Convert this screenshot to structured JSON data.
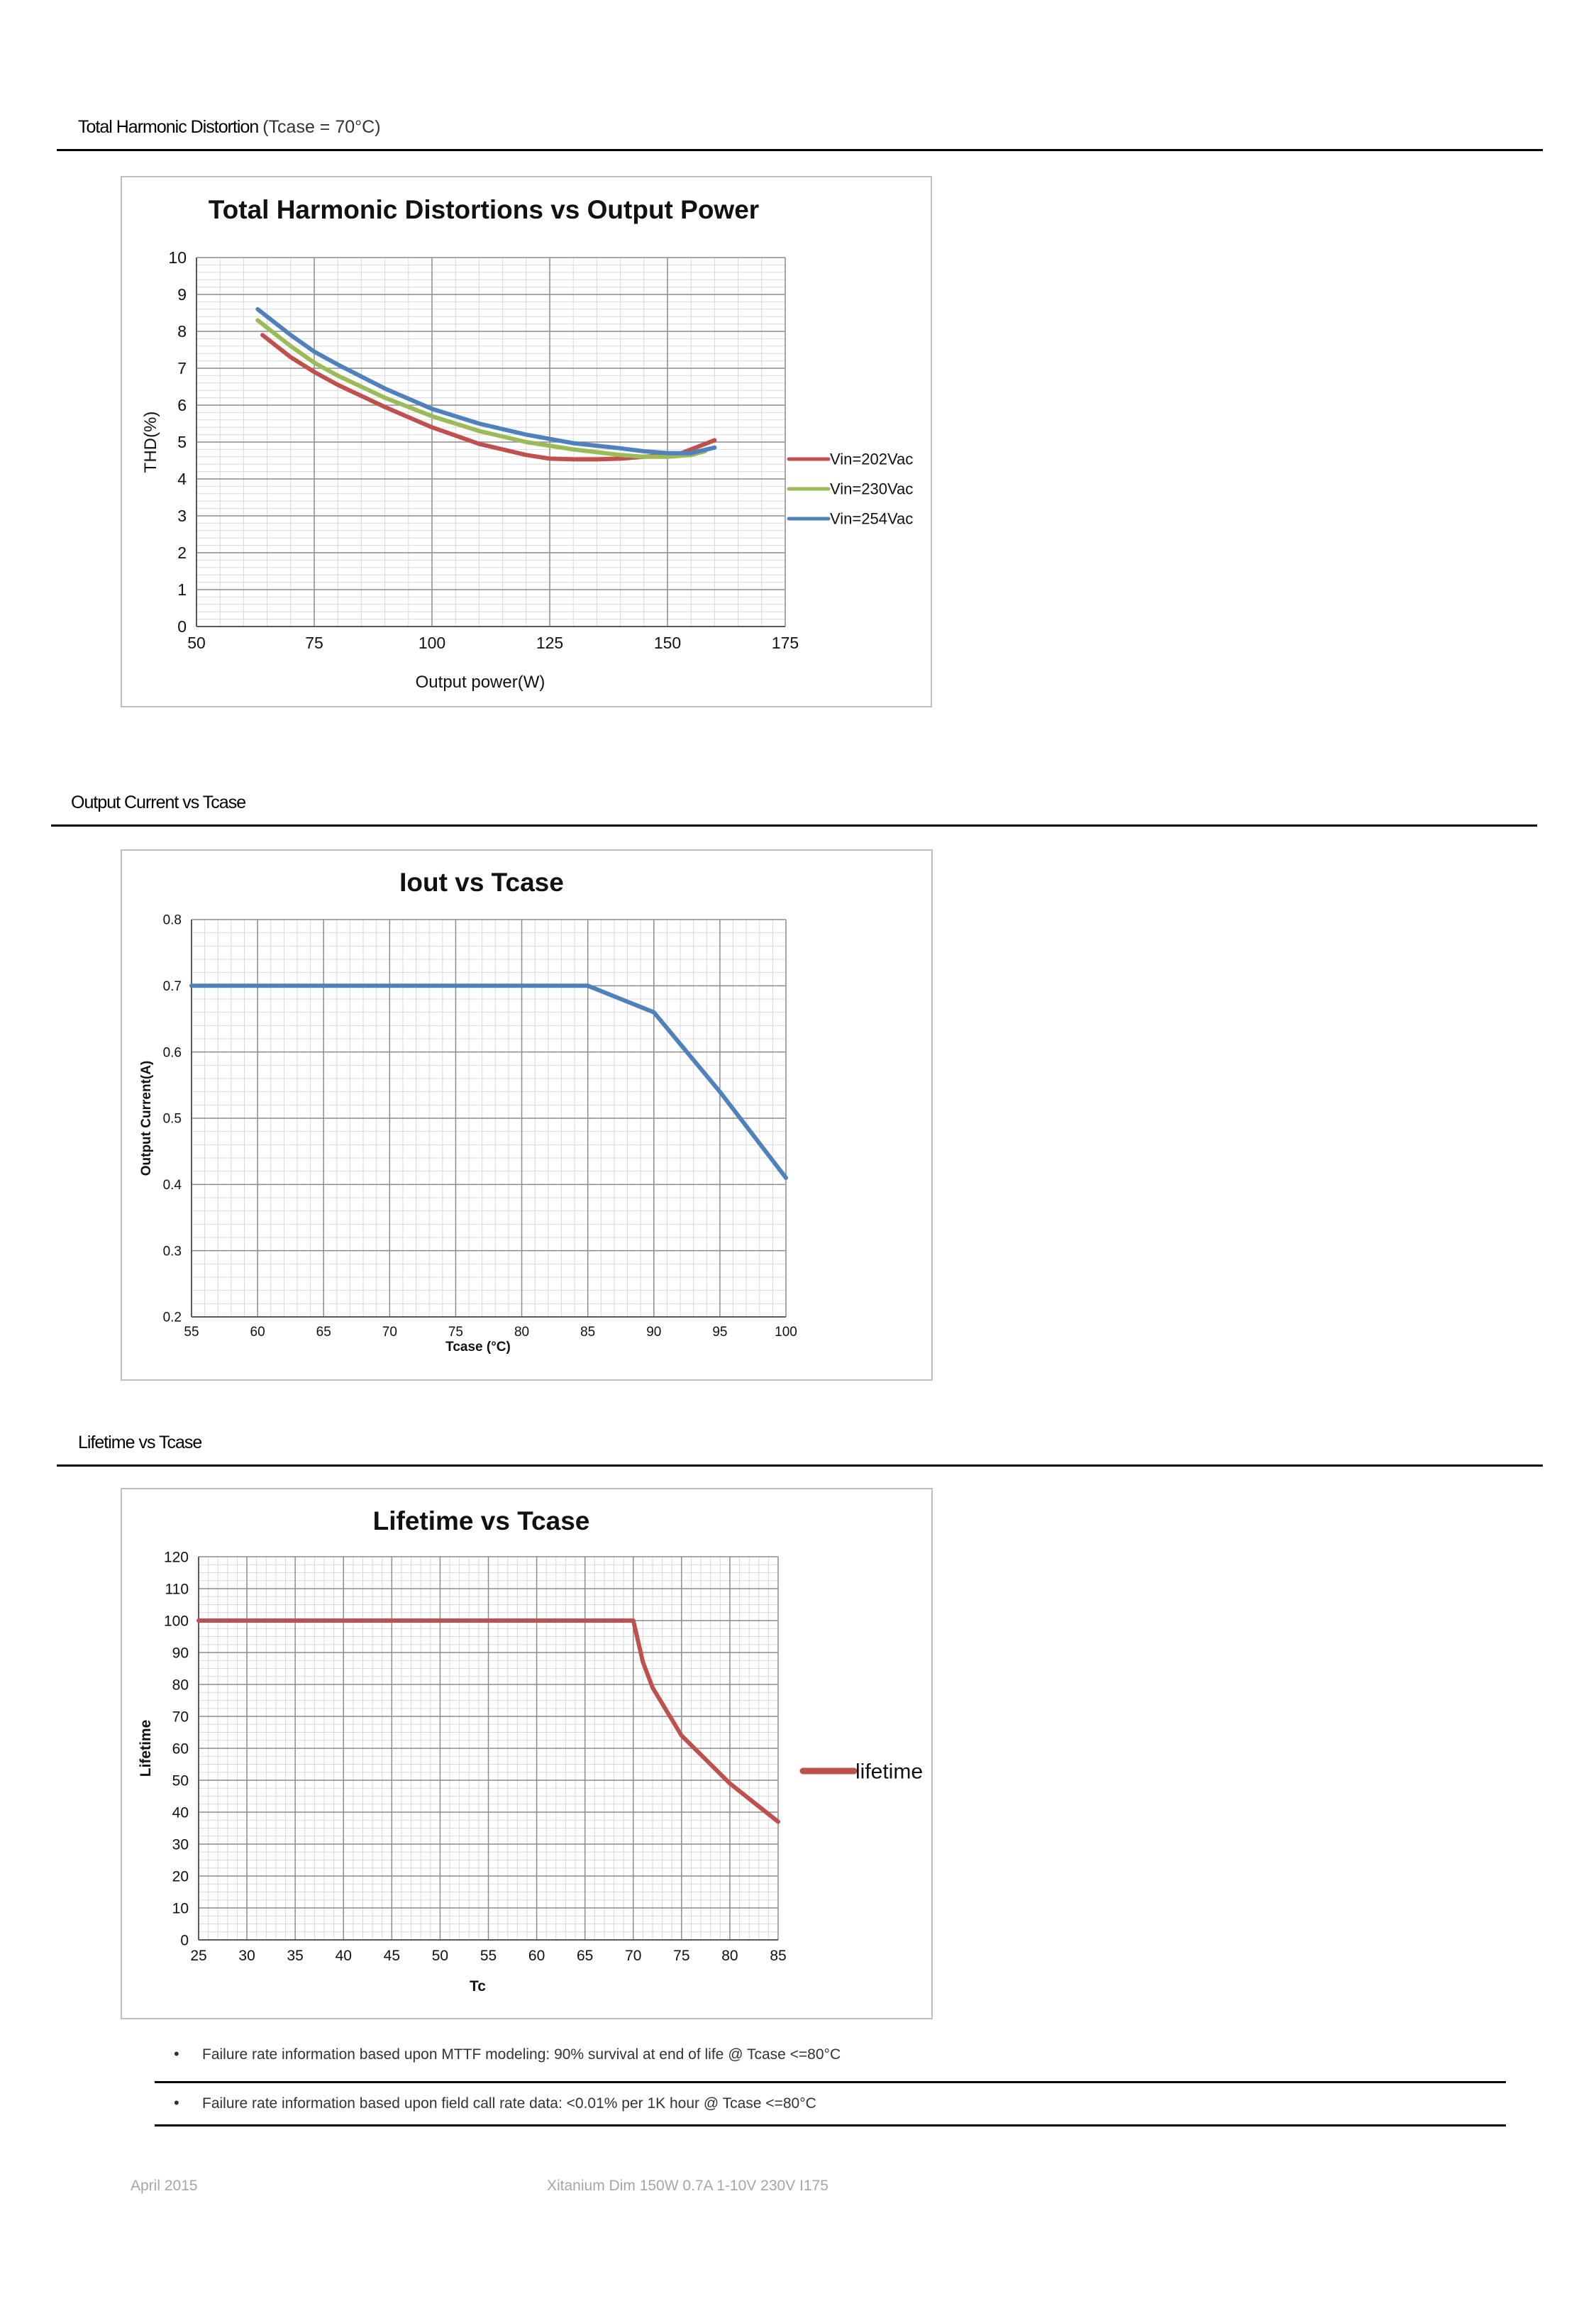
{
  "sections": {
    "thd": {
      "title": "Total Harmonic Distortion",
      "title_suffix": "(Tcase = 70°C)"
    },
    "iout": {
      "title": "Output Current vs Tcase"
    },
    "life": {
      "title": "Lifetime vs Tcase"
    }
  },
  "notes": [
    "Failure rate information based upon MTTF modeling: 90% survival at end of life @ Tcase <=80°C",
    "Failure rate information based upon field call rate data: <0.01% per 1K hour @ Tcase <=80°C"
  ],
  "bullet": "•",
  "footer": {
    "date": "April 2015",
    "product": "Xitanium Dim 150W 0.7A 1-10V 230V I175"
  },
  "chart_data": [
    {
      "type": "line",
      "title": "Total Harmonic Distortions vs Output Power",
      "xlabel": "Output power(W)",
      "ylabel": "THD(%)",
      "xlim": [
        50,
        175
      ],
      "ylim": [
        0,
        10
      ],
      "xticks": [
        50,
        75,
        100,
        125,
        150,
        175
      ],
      "yticks": [
        0,
        1,
        2,
        3,
        4,
        5,
        6,
        7,
        8,
        9,
        10
      ],
      "grid": true,
      "legend": "right",
      "series": [
        {
          "name": "Vin=202Vac",
          "color": "#c0504d",
          "x": [
            64,
            70,
            75,
            80,
            90,
            100,
            110,
            120,
            125,
            130,
            135,
            140,
            145,
            150,
            153,
            156,
            160
          ],
          "y": [
            7.9,
            7.3,
            6.9,
            6.55,
            5.95,
            5.4,
            4.95,
            4.65,
            4.55,
            4.53,
            4.53,
            4.55,
            4.6,
            4.65,
            4.7,
            4.85,
            5.05
          ]
        },
        {
          "name": "Vin=230Vac",
          "color": "#9bbb59",
          "x": [
            63,
            70,
            75,
            80,
            90,
            100,
            110,
            120,
            130,
            140,
            145,
            150,
            155,
            158
          ],
          "y": [
            8.3,
            7.6,
            7.15,
            6.8,
            6.2,
            5.7,
            5.3,
            5.0,
            4.8,
            4.65,
            4.6,
            4.6,
            4.65,
            4.75
          ]
        },
        {
          "name": "Vin=254Vac",
          "color": "#4f81bd",
          "x": [
            63,
            70,
            75,
            80,
            90,
            100,
            110,
            120,
            130,
            140,
            145,
            150,
            155,
            160
          ],
          "y": [
            8.6,
            7.9,
            7.45,
            7.1,
            6.45,
            5.9,
            5.5,
            5.2,
            4.97,
            4.83,
            4.75,
            4.7,
            4.7,
            4.85
          ]
        }
      ]
    },
    {
      "type": "line",
      "title": "Iout vs Tcase",
      "xlabel": "Tcase (°C)",
      "ylabel": "Output Current(A)",
      "xlim": [
        55,
        100
      ],
      "ylim": [
        0.2,
        0.8
      ],
      "xticks": [
        55,
        60,
        65,
        70,
        75,
        80,
        85,
        90,
        95,
        100
      ],
      "yticks": [
        0.2,
        0.3,
        0.4,
        0.5,
        0.6,
        0.7,
        0.8
      ],
      "grid": true,
      "series": [
        {
          "color": "#4f81bd",
          "x": [
            55,
            85,
            90,
            95,
            100
          ],
          "y": [
            0.7,
            0.7,
            0.66,
            0.54,
            0.41
          ]
        }
      ]
    },
    {
      "type": "line",
      "title": "Lifetime vs Tcase",
      "xlabel": "Tc",
      "ylabel": "Lifetime",
      "xlim": [
        25,
        85
      ],
      "ylim": [
        0,
        120
      ],
      "xticks": [
        25,
        30,
        35,
        40,
        45,
        50,
        55,
        60,
        65,
        70,
        75,
        80,
        85
      ],
      "yticks": [
        0,
        10,
        20,
        30,
        40,
        50,
        60,
        70,
        80,
        90,
        100,
        110,
        120
      ],
      "grid": true,
      "legend": "right",
      "series": [
        {
          "name": "lifetime",
          "color": "#c0504d",
          "x": [
            25,
            70,
            71,
            72,
            75,
            80,
            85
          ],
          "y": [
            100,
            100,
            87,
            79,
            64,
            49,
            37
          ]
        }
      ]
    }
  ]
}
